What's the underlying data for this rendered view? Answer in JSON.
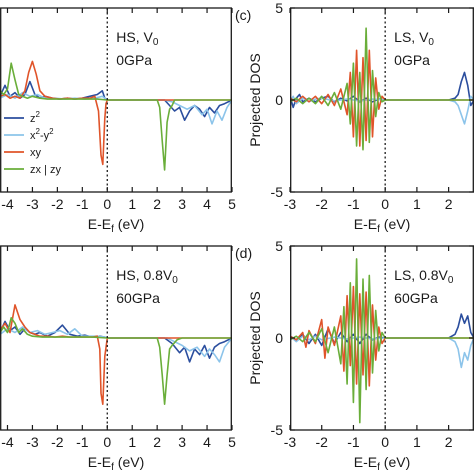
{
  "colors": {
    "z2": "#2b4e9e",
    "x2y2": "#8cc4ea",
    "xy": "#e0542a",
    "zxzy": "#6aae3a",
    "axis": "#1a1a1a",
    "fermi": "#1a1a1a"
  },
  "legend": {
    "entries": [
      {
        "key": "z2",
        "base": "z",
        "sup": "2"
      },
      {
        "key": "x2y2",
        "base": "x",
        "sup": "2",
        "mid": "-y",
        "sup2": "2"
      },
      {
        "key": "xy",
        "base": "xy"
      },
      {
        "key": "zxzy",
        "base": "zx | zy"
      }
    ]
  },
  "chart_data": [
    {
      "panel": "a",
      "type": "line",
      "title_lines": [
        "HS, V",
        "0GPa"
      ],
      "title_sub": "0",
      "xlabel": "E-E",
      "xlabel_sub": "f",
      "xlabel_unit": " (eV)",
      "xlim": [
        -4.3,
        5
      ],
      "ylim": [
        -5,
        5
      ],
      "xticks": [
        -4,
        -3,
        -2,
        -1,
        0,
        1,
        2,
        3,
        4,
        5
      ],
      "fermi_level": 0,
      "series": [
        {
          "key": "z2",
          "x": [
            -4.3,
            -4.1,
            -3.9,
            -3.7,
            -3.5,
            -3.3,
            -3.1,
            -2.9,
            -2.7,
            -2.5,
            -2.2,
            -1.9,
            -1.6,
            -1.3,
            -1.0,
            -0.7,
            -0.4,
            -0.2,
            -0.1,
            0,
            2.3,
            2.5,
            2.7,
            2.9,
            3.1,
            3.3,
            3.5,
            3.7,
            3.9,
            4.1,
            4.3,
            4.5,
            4.7,
            5.0
          ],
          "y": [
            0.2,
            0.8,
            0.2,
            0.4,
            0.1,
            0.3,
            1.0,
            0.3,
            0.1,
            0.2,
            0.1,
            0.05,
            0.1,
            0.05,
            0.1,
            0.2,
            0.3,
            0.5,
            0.1,
            0,
            0,
            -0.3,
            -0.6,
            -0.4,
            -1.1,
            -0.6,
            -0.3,
            -0.5,
            -0.9,
            -0.4,
            -0.7,
            -0.3,
            -0.2,
            0
          ]
        },
        {
          "key": "x2y2",
          "x": [
            -4.3,
            -4.0,
            -3.7,
            -3.4,
            -3.1,
            -2.8,
            -2.5,
            -2.1,
            -1.7,
            -1.3,
            -0.9,
            -0.5,
            -0.2,
            0,
            2.3,
            2.6,
            2.9,
            3.2,
            3.5,
            3.8,
            4.0,
            4.2,
            4.4,
            4.6,
            4.8,
            5.0
          ],
          "y": [
            0.1,
            0.3,
            0.1,
            0.4,
            0.2,
            0.3,
            0.1,
            0.1,
            0.05,
            0.1,
            0.05,
            0.1,
            0.2,
            0,
            0,
            -0.1,
            -0.3,
            -0.5,
            -0.3,
            -0.8,
            -0.5,
            -1.3,
            -0.6,
            -1.1,
            -0.4,
            0
          ]
        },
        {
          "key": "xy",
          "x": [
            -4.3,
            -4.1,
            -3.9,
            -3.7,
            -3.5,
            -3.3,
            -3.15,
            -3.0,
            -2.85,
            -2.7,
            -2.5,
            -2.2,
            -1.9,
            -1.6,
            -1.3,
            -1.0,
            -0.7,
            -0.5,
            -0.35,
            -0.25,
            -0.18,
            -0.1,
            -0.05,
            0,
            5.0
          ],
          "y": [
            0.2,
            0.3,
            0.1,
            0.2,
            0.1,
            0.5,
            1.5,
            2.1,
            1.4,
            0.5,
            0.2,
            0.1,
            0.05,
            0.1,
            0.05,
            0.1,
            0.1,
            0.2,
            -0.6,
            -3.0,
            -3.5,
            -1.0,
            -0.2,
            0,
            0
          ]
        },
        {
          "key": "zxzy",
          "x": [
            -4.3,
            -4.15,
            -4.0,
            -3.85,
            -3.7,
            -3.55,
            -3.4,
            -3.2,
            -3.0,
            -2.7,
            -2.4,
            -2.0,
            -1.6,
            -1.2,
            -0.8,
            -0.4,
            0,
            2.0,
            2.1,
            2.2,
            2.3,
            2.4,
            2.5,
            2.6,
            2.7,
            3.0,
            5.0
          ],
          "y": [
            0.5,
            0.3,
            0.6,
            2.0,
            1.1,
            0.3,
            0.2,
            0.1,
            0.2,
            0.1,
            0.05,
            0.05,
            0.05,
            0.05,
            0.05,
            0.05,
            0,
            0,
            -0.4,
            -2.2,
            -3.8,
            -1.2,
            -0.5,
            -0.3,
            0,
            0,
            0
          ]
        }
      ]
    },
    {
      "panel": "c",
      "label": "(c)",
      "type": "line",
      "title_lines": [
        "LS, V",
        "0GPa"
      ],
      "title_sub": "0",
      "xlabel": "E-E",
      "xlabel_sub": "f",
      "xlabel_unit": " (eV)",
      "ylabel": "Projected DOS",
      "xlim": [
        -3,
        2.8
      ],
      "ylim": [
        -5,
        5
      ],
      "xticks": [
        -3,
        -2,
        -1,
        0,
        1,
        2
      ],
      "yticks": [
        -5,
        0,
        5
      ],
      "fermi_level": 0,
      "series": [
        {
          "key": "z2",
          "x": [
            -3.0,
            -2.9,
            -2.8,
            -2.7,
            -2.6,
            -2.4,
            -2.2,
            -2.0,
            -1.8,
            -1.6,
            -1.4,
            -1.2,
            -1.0,
            -0.8,
            -0.6,
            -0.4,
            -0.2,
            0,
            2.0,
            2.2,
            2.3,
            2.4,
            2.5,
            2.6,
            2.7,
            2.8
          ],
          "y": [
            0.2,
            -0.4,
            0.1,
            0.3,
            -0.1,
            0.1,
            -0.1,
            0.1,
            0.2,
            -0.1,
            0.1,
            -0.05,
            0.2,
            -0.1,
            0.1,
            -0.1,
            0.05,
            0,
            0,
            0.1,
            0.3,
            1.0,
            1.5,
            0.8,
            -0.3,
            0
          ]
        },
        {
          "key": "x2y2",
          "x": [
            -3.0,
            -2.9,
            -2.8,
            -2.6,
            -2.4,
            -2.2,
            -2.0,
            -1.6,
            -1.2,
            -0.8,
            -0.4,
            0,
            2.0,
            2.2,
            2.3,
            2.4,
            2.5,
            2.6,
            2.7,
            2.8
          ],
          "y": [
            -0.1,
            0.2,
            -0.2,
            0.1,
            -0.1,
            0.05,
            0.1,
            -0.05,
            0.05,
            -0.05,
            0.05,
            0,
            0,
            -0.1,
            -0.3,
            -0.8,
            -1.3,
            -0.6,
            0.2,
            0
          ]
        },
        {
          "key": "xy",
          "x": [
            -3.0,
            -2.8,
            -2.6,
            -2.4,
            -2.2,
            -2.0,
            -1.8,
            -1.6,
            -1.4,
            -1.2,
            -1.1,
            -1.0,
            -0.9,
            -0.8,
            -0.7,
            -0.6,
            -0.5,
            -0.4,
            -0.3,
            -0.2,
            -0.1,
            0,
            2.8
          ],
          "y": [
            0.1,
            -0.1,
            0.2,
            -0.1,
            0.2,
            -0.2,
            0.3,
            -0.3,
            0.6,
            -0.8,
            1.5,
            -2.0,
            2.7,
            -2.5,
            2.3,
            -2.2,
            2.7,
            -2.0,
            1.2,
            -0.5,
            0.2,
            0,
            0
          ]
        },
        {
          "key": "zxzy",
          "x": [
            -3.0,
            -2.8,
            -2.6,
            -2.4,
            -2.2,
            -2.0,
            -1.8,
            -1.6,
            -1.4,
            -1.2,
            -1.1,
            -1.0,
            -0.9,
            -0.8,
            -0.7,
            -0.6,
            -0.5,
            -0.4,
            -0.3,
            -0.2,
            -0.1,
            0,
            2.8
          ],
          "y": [
            -0.1,
            0.1,
            -0.2,
            0.1,
            -0.2,
            0.2,
            -0.3,
            0.4,
            -0.5,
            0.9,
            -1.3,
            2.0,
            -2.5,
            1.5,
            -2.7,
            3.9,
            -2.3,
            1.6,
            -0.9,
            0.4,
            -0.1,
            0,
            0
          ]
        }
      ]
    },
    {
      "panel": "b",
      "type": "line",
      "title_lines": [
        "HS, 0.8V",
        "60GPa"
      ],
      "title_sub": "0",
      "xlabel": "E-E",
      "xlabel_sub": "f",
      "xlabel_unit": " (eV)",
      "xlim": [
        -4.3,
        5
      ],
      "ylim": [
        -5,
        5
      ],
      "xticks": [
        -4,
        -3,
        -2,
        -1,
        0,
        1,
        2,
        3,
        4,
        5
      ],
      "fermi_level": 0,
      "series": [
        {
          "key": "z2",
          "x": [
            -4.3,
            -4.1,
            -3.9,
            -3.7,
            -3.5,
            -3.3,
            -3.1,
            -2.9,
            -2.7,
            -2.4,
            -2.1,
            -1.8,
            -1.5,
            -1.2,
            -0.9,
            -0.6,
            -0.3,
            -0.1,
            0,
            2.3,
            2.6,
            2.9,
            3.1,
            3.3,
            3.5,
            3.7,
            3.9,
            4.1,
            4.3,
            4.5,
            4.7,
            5.0
          ],
          "y": [
            0.3,
            0.9,
            0.4,
            0.6,
            0.2,
            0.5,
            0.3,
            0.2,
            0.3,
            0.1,
            0.3,
            0.7,
            0.2,
            0.1,
            0.15,
            0.05,
            0.1,
            0.05,
            0,
            0,
            -0.3,
            -0.8,
            -0.5,
            -1.3,
            -0.6,
            -0.9,
            -0.4,
            -1.1,
            -0.5,
            -0.3,
            -0.2,
            0
          ]
        },
        {
          "key": "x2y2",
          "x": [
            -4.3,
            -4.0,
            -3.7,
            -3.4,
            -3.1,
            -2.8,
            -2.5,
            -2.2,
            -1.9,
            -1.6,
            -1.3,
            -1.0,
            -0.7,
            -0.4,
            -0.1,
            0,
            2.4,
            2.7,
            3.0,
            3.3,
            3.6,
            3.9,
            4.1,
            4.3,
            4.5,
            4.7,
            5.0
          ],
          "y": [
            0.2,
            0.5,
            0.3,
            0.6,
            0.3,
            0.4,
            0.2,
            0.3,
            0.4,
            0.2,
            0.5,
            0.1,
            0.1,
            0.1,
            0.05,
            0,
            0,
            -0.2,
            -0.4,
            -0.7,
            -0.5,
            -1.0,
            -0.6,
            -0.9,
            -1.3,
            -0.5,
            0
          ]
        },
        {
          "key": "xy",
          "x": [
            -4.3,
            -4.1,
            -3.9,
            -3.7,
            -3.5,
            -3.3,
            -3.1,
            -2.9,
            -2.7,
            -2.4,
            -2.1,
            -1.8,
            -1.5,
            -1.2,
            -0.9,
            -0.6,
            -0.4,
            -0.3,
            -0.25,
            -0.18,
            -0.1,
            0,
            5.0
          ],
          "y": [
            0.4,
            0.8,
            0.3,
            1.8,
            1.0,
            0.6,
            0.3,
            0.2,
            0.1,
            0.1,
            0.05,
            0.1,
            0.05,
            0.05,
            0.05,
            0.05,
            0.1,
            -0.6,
            -3.0,
            -3.6,
            -1.0,
            0,
            0
          ]
        },
        {
          "key": "zxzy",
          "x": [
            -4.3,
            -4.15,
            -4.0,
            -3.85,
            -3.7,
            -3.55,
            -3.4,
            -3.2,
            -3.0,
            -2.6,
            -2.2,
            -1.8,
            -1.4,
            -1.0,
            -0.6,
            0,
            2.0,
            2.1,
            2.2,
            2.3,
            2.4,
            2.5,
            2.6,
            2.8,
            3.0,
            5.0
          ],
          "y": [
            0.3,
            0.6,
            0.3,
            1.1,
            0.8,
            0.3,
            0.5,
            0.2,
            0.1,
            0.05,
            0.05,
            0.05,
            0.05,
            0.05,
            0.05,
            0,
            0,
            -0.5,
            -2.0,
            -3.6,
            -2.0,
            -0.6,
            -0.4,
            -0.1,
            0,
            0
          ]
        }
      ]
    },
    {
      "panel": "d",
      "label": "(d)",
      "type": "line",
      "title_lines": [
        "LS, 0.8V",
        "60GPa"
      ],
      "title_sub": "0",
      "xlabel": "E-E",
      "xlabel_sub": "f",
      "xlabel_unit": " (eV)",
      "ylabel": "Projected DOS",
      "xlim": [
        -3,
        2.8
      ],
      "ylim": [
        -5,
        5
      ],
      "xticks": [
        -3,
        -2,
        -1,
        0,
        1,
        2
      ],
      "yticks": [
        -5,
        0,
        5
      ],
      "fermi_level": 0,
      "series": [
        {
          "key": "z2",
          "x": [
            -3.0,
            -2.8,
            -2.6,
            -2.4,
            -2.2,
            -2.0,
            -1.8,
            -1.6,
            -1.4,
            -1.2,
            -1.0,
            -0.8,
            -0.6,
            -0.4,
            -0.2,
            0,
            2.0,
            2.2,
            2.3,
            2.4,
            2.5,
            2.6,
            2.7,
            2.8
          ],
          "y": [
            0.1,
            -0.1,
            0.2,
            -0.3,
            0.2,
            -0.4,
            0.5,
            -0.3,
            0.3,
            -0.2,
            0.2,
            -0.3,
            0.2,
            -0.1,
            0.05,
            0,
            0,
            0.2,
            0.6,
            1.3,
            0.8,
            1.2,
            0.3,
            0
          ]
        },
        {
          "key": "x2y2",
          "x": [
            -3.0,
            -2.8,
            -2.6,
            -2.4,
            -2.2,
            -2.0,
            -1.6,
            -1.2,
            -0.8,
            -0.4,
            0,
            2.0,
            2.2,
            2.3,
            2.4,
            2.5,
            2.6,
            2.7,
            2.8
          ],
          "y": [
            0.1,
            -0.2,
            0.1,
            -0.1,
            0.1,
            -0.1,
            0.05,
            -0.05,
            0.05,
            -0.05,
            0,
            0,
            -0.2,
            -0.6,
            -1.6,
            -0.8,
            -1.2,
            -0.4,
            0
          ]
        },
        {
          "key": "xy",
          "x": [
            -3.0,
            -2.8,
            -2.6,
            -2.5,
            -2.4,
            -2.2,
            -2.0,
            -1.9,
            -1.8,
            -1.6,
            -1.4,
            -1.3,
            -1.2,
            -1.1,
            -1.0,
            -0.9,
            -0.8,
            -0.7,
            -0.6,
            -0.5,
            -0.4,
            -0.3,
            -0.2,
            -0.1,
            0,
            2.8
          ],
          "y": [
            0.1,
            -0.1,
            0.3,
            -0.5,
            0.4,
            -0.3,
            1.0,
            -1.1,
            0.6,
            -0.4,
            1.2,
            -1.8,
            2.3,
            -1.5,
            2.8,
            -2.5,
            2.4,
            -2.0,
            2.5,
            -2.6,
            1.8,
            -1.2,
            0.6,
            -0.3,
            0,
            0
          ]
        },
        {
          "key": "zxzy",
          "x": [
            -3.0,
            -2.8,
            -2.6,
            -2.4,
            -2.2,
            -2.0,
            -1.8,
            -1.6,
            -1.4,
            -1.3,
            -1.2,
            -1.1,
            -1.0,
            -0.9,
            -0.8,
            -0.7,
            -0.6,
            -0.5,
            -0.4,
            -0.3,
            -0.2,
            -0.1,
            0,
            2.8
          ],
          "y": [
            -0.1,
            0.1,
            -0.2,
            0.3,
            -0.2,
            0.5,
            -0.8,
            0.6,
            -1.4,
            1.7,
            -2.5,
            3.0,
            -3.5,
            4.3,
            -4.6,
            3.2,
            -2.8,
            3.4,
            -1.9,
            1.5,
            -0.7,
            0.3,
            0,
            0
          ]
        }
      ]
    }
  ]
}
